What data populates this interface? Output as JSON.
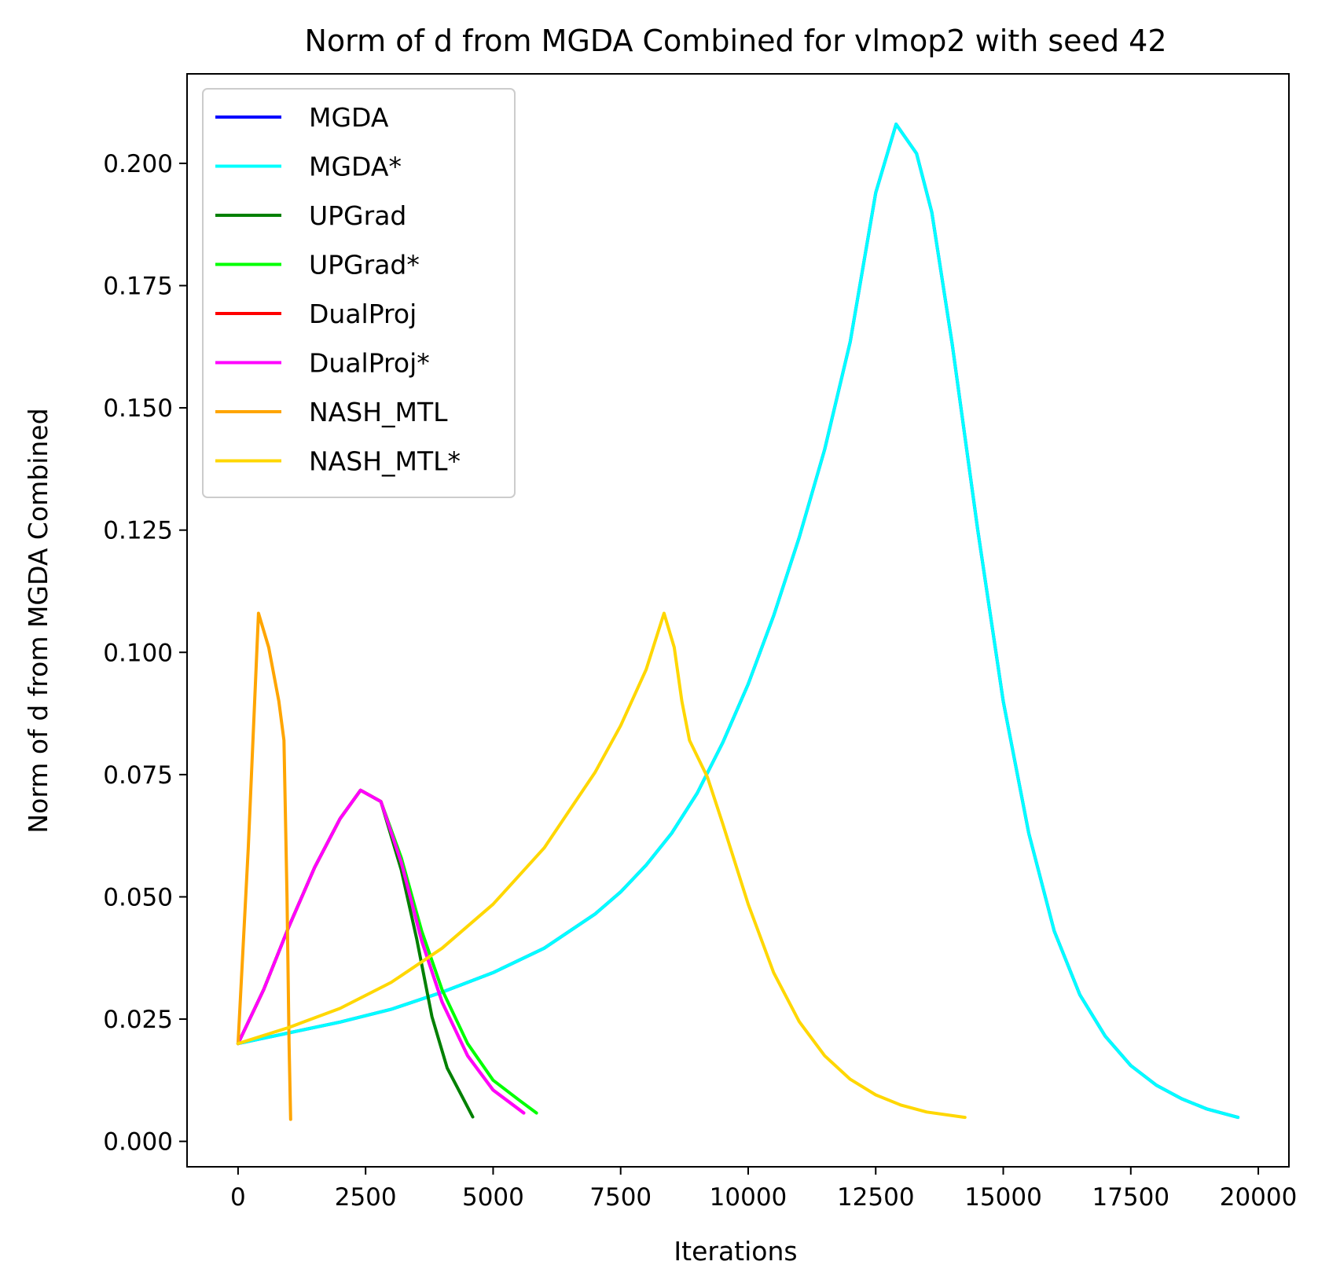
{
  "chart_data": {
    "type": "line",
    "title": "Norm of d from MGDA Combined for vlmop2 with seed 42",
    "xlabel": "Iterations",
    "ylabel": "Norm of d from MGDA Combined",
    "xlim": [
      -1000,
      20600
    ],
    "ylim": [
      -0.0052,
      0.2183
    ],
    "xticks": [
      0,
      2500,
      5000,
      7500,
      10000,
      12500,
      15000,
      17500,
      20000
    ],
    "xtick_labels": [
      "0",
      "2500",
      "5000",
      "7500",
      "10000",
      "12500",
      "15000",
      "17500",
      "20000"
    ],
    "yticks": [
      0.0,
      0.025,
      0.05,
      0.075,
      0.1,
      0.125,
      0.15,
      0.175,
      0.2
    ],
    "ytick_labels": [
      "0.000",
      "0.025",
      "0.050",
      "0.075",
      "0.100",
      "0.125",
      "0.150",
      "0.175",
      "0.200"
    ],
    "grid": false,
    "legend_position": "top-left",
    "series": [
      {
        "name": "MGDA",
        "color": "#0000ff",
        "points": [
          [
            0,
            0.02
          ],
          [
            1000,
            0.0222
          ],
          [
            2000,
            0.0244
          ],
          [
            3000,
            0.027
          ],
          [
            4000,
            0.0305
          ],
          [
            5000,
            0.0345
          ],
          [
            6000,
            0.0395
          ],
          [
            7000,
            0.0465
          ],
          [
            7500,
            0.051
          ],
          [
            8000,
            0.0565
          ],
          [
            8500,
            0.063
          ],
          [
            9000,
            0.0712
          ],
          [
            9500,
            0.0815
          ],
          [
            10000,
            0.0935
          ],
          [
            10500,
            0.1075
          ],
          [
            11000,
            0.1235
          ],
          [
            11500,
            0.1415
          ],
          [
            12000,
            0.1635
          ],
          [
            12500,
            0.194
          ],
          [
            12900,
            0.208
          ],
          [
            13300,
            0.202
          ],
          [
            13600,
            0.19
          ],
          [
            14000,
            0.163
          ],
          [
            14500,
            0.125
          ],
          [
            15000,
            0.09
          ],
          [
            15500,
            0.063
          ],
          [
            16000,
            0.043
          ],
          [
            16500,
            0.03
          ],
          [
            17000,
            0.0215
          ],
          [
            17500,
            0.0155
          ],
          [
            18000,
            0.0115
          ],
          [
            18500,
            0.0087
          ],
          [
            19000,
            0.0066
          ],
          [
            19600,
            0.0049
          ]
        ]
      },
      {
        "name": "MGDA*",
        "color": "#00ffff",
        "points": [
          [
            0,
            0.02
          ],
          [
            1000,
            0.0222
          ],
          [
            2000,
            0.0244
          ],
          [
            3000,
            0.027
          ],
          [
            4000,
            0.0305
          ],
          [
            5000,
            0.0345
          ],
          [
            6000,
            0.0395
          ],
          [
            7000,
            0.0465
          ],
          [
            7500,
            0.051
          ],
          [
            8000,
            0.0565
          ],
          [
            8500,
            0.063
          ],
          [
            9000,
            0.0712
          ],
          [
            9500,
            0.0815
          ],
          [
            10000,
            0.0935
          ],
          [
            10500,
            0.1075
          ],
          [
            11000,
            0.1235
          ],
          [
            11500,
            0.1415
          ],
          [
            12000,
            0.1635
          ],
          [
            12500,
            0.194
          ],
          [
            12900,
            0.208
          ],
          [
            13300,
            0.202
          ],
          [
            13600,
            0.19
          ],
          [
            14000,
            0.163
          ],
          [
            14500,
            0.125
          ],
          [
            15000,
            0.09
          ],
          [
            15500,
            0.063
          ],
          [
            16000,
            0.043
          ],
          [
            16500,
            0.03
          ],
          [
            17000,
            0.0215
          ],
          [
            17500,
            0.0155
          ],
          [
            18000,
            0.0115
          ],
          [
            18500,
            0.0087
          ],
          [
            19000,
            0.0066
          ],
          [
            19600,
            0.0049
          ]
        ]
      },
      {
        "name": "UPGrad",
        "color": "#008000",
        "points": [
          [
            0,
            0.02
          ],
          [
            500,
            0.031
          ],
          [
            1000,
            0.044
          ],
          [
            1500,
            0.056
          ],
          [
            2000,
            0.066
          ],
          [
            2400,
            0.0718
          ],
          [
            2800,
            0.0695
          ],
          [
            3200,
            0.0555
          ],
          [
            3500,
            0.0415
          ],
          [
            3800,
            0.0255
          ],
          [
            4100,
            0.015
          ],
          [
            4400,
            0.009
          ],
          [
            4600,
            0.005
          ]
        ]
      },
      {
        "name": "UPGrad*",
        "color": "#00ff00",
        "points": [
          [
            0,
            0.02
          ],
          [
            500,
            0.031
          ],
          [
            1000,
            0.044
          ],
          [
            1500,
            0.056
          ],
          [
            2000,
            0.066
          ],
          [
            2400,
            0.0718
          ],
          [
            2800,
            0.0695
          ],
          [
            3200,
            0.058
          ],
          [
            3600,
            0.043
          ],
          [
            4000,
            0.031
          ],
          [
            4500,
            0.02
          ],
          [
            5000,
            0.0125
          ],
          [
            5500,
            0.0085
          ],
          [
            5850,
            0.0058
          ]
        ]
      },
      {
        "name": "DualProj",
        "color": "#ff0000",
        "points": [
          [
            0,
            0.02
          ],
          [
            500,
            0.031
          ],
          [
            1000,
            0.044
          ],
          [
            1500,
            0.056
          ],
          [
            2000,
            0.066
          ],
          [
            2400,
            0.0718
          ],
          [
            2800,
            0.0695
          ],
          [
            3200,
            0.057
          ],
          [
            3600,
            0.041
          ],
          [
            4000,
            0.0285
          ],
          [
            4500,
            0.0175
          ],
          [
            5000,
            0.0105
          ],
          [
            5600,
            0.0058
          ]
        ]
      },
      {
        "name": "DualProj*",
        "color": "#ff00ff",
        "points": [
          [
            0,
            0.02
          ],
          [
            500,
            0.031
          ],
          [
            1000,
            0.044
          ],
          [
            1500,
            0.056
          ],
          [
            2000,
            0.066
          ],
          [
            2400,
            0.0718
          ],
          [
            2800,
            0.0695
          ],
          [
            3200,
            0.057
          ],
          [
            3600,
            0.041
          ],
          [
            4000,
            0.0285
          ],
          [
            4500,
            0.0175
          ],
          [
            5000,
            0.0105
          ],
          [
            5600,
            0.0058
          ]
        ]
      },
      {
        "name": "NASH_MTL",
        "color": "#ffa500",
        "points": [
          [
            0,
            0.02
          ],
          [
            200,
            0.06
          ],
          [
            400,
            0.108
          ],
          [
            600,
            0.101
          ],
          [
            800,
            0.09
          ],
          [
            900,
            0.082
          ],
          [
            960,
            0.05
          ],
          [
            1000,
            0.02
          ],
          [
            1030,
            0.0045
          ]
        ]
      },
      {
        "name": "NASH_MTL*",
        "color": "#ffd700",
        "points": [
          [
            0,
            0.02
          ],
          [
            1000,
            0.0233
          ],
          [
            2000,
            0.0272
          ],
          [
            3000,
            0.0325
          ],
          [
            4000,
            0.0395
          ],
          [
            5000,
            0.0485
          ],
          [
            6000,
            0.06
          ],
          [
            7000,
            0.0755
          ],
          [
            7500,
            0.085
          ],
          [
            8000,
            0.0965
          ],
          [
            8350,
            0.108
          ],
          [
            8550,
            0.101
          ],
          [
            8700,
            0.09
          ],
          [
            8850,
            0.082
          ],
          [
            9200,
            0.0745
          ],
          [
            9500,
            0.065
          ],
          [
            10000,
            0.0485
          ],
          [
            10500,
            0.0345
          ],
          [
            11000,
            0.0245
          ],
          [
            11500,
            0.0175
          ],
          [
            12000,
            0.0127
          ],
          [
            12500,
            0.0095
          ],
          [
            13000,
            0.0074
          ],
          [
            13500,
            0.006
          ],
          [
            14250,
            0.0049
          ]
        ]
      }
    ]
  }
}
